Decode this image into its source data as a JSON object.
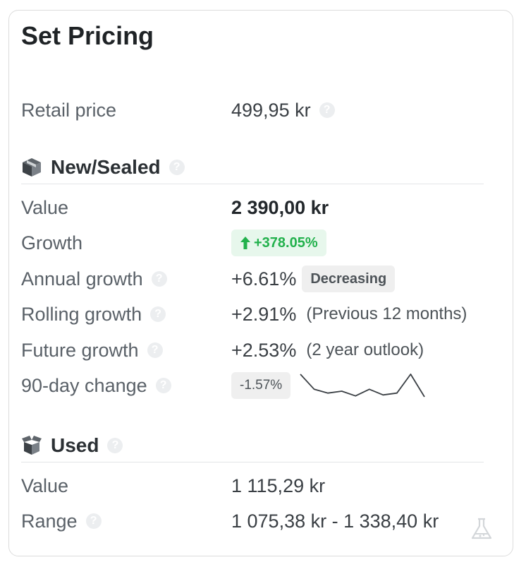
{
  "title": "Set Pricing",
  "retail": {
    "label": "Retail price",
    "value": "499,95 kr"
  },
  "new_sealed": {
    "heading": "New/Sealed",
    "value_label": "Value",
    "value": "2 390,00 kr",
    "growth_label": "Growth",
    "growth": "+378.05%",
    "annual_label": "Annual growth",
    "annual": "+6.61%",
    "annual_tag": "Decreasing",
    "rolling_label": "Rolling growth",
    "rolling": "+2.91%",
    "rolling_note": "(Previous 12 months)",
    "future_label": "Future growth",
    "future": "+2.53%",
    "future_note": "(2 year outlook)",
    "change_label": "90-day change",
    "change": "-1.57%",
    "sparkline": [
      2.6,
      1.0,
      0.6,
      0.8,
      0.3,
      1.0,
      0.4,
      0.6,
      2.6,
      0.2
    ]
  },
  "used": {
    "heading": "Used",
    "value_label": "Value",
    "value": "1 115,29 kr",
    "range_label": "Range",
    "range": "1 075,38 kr - 1 338,40 kr"
  },
  "icons": {
    "help": "question-circle-icon",
    "new": "sealed-box-icon",
    "used": "open-box-icon",
    "flask": "flask-icon",
    "arrow": "arrow-up-icon"
  },
  "colors": {
    "growth": "#22b14c",
    "growth_bg": "#e7f7ec",
    "badge_bg": "#efefef"
  }
}
